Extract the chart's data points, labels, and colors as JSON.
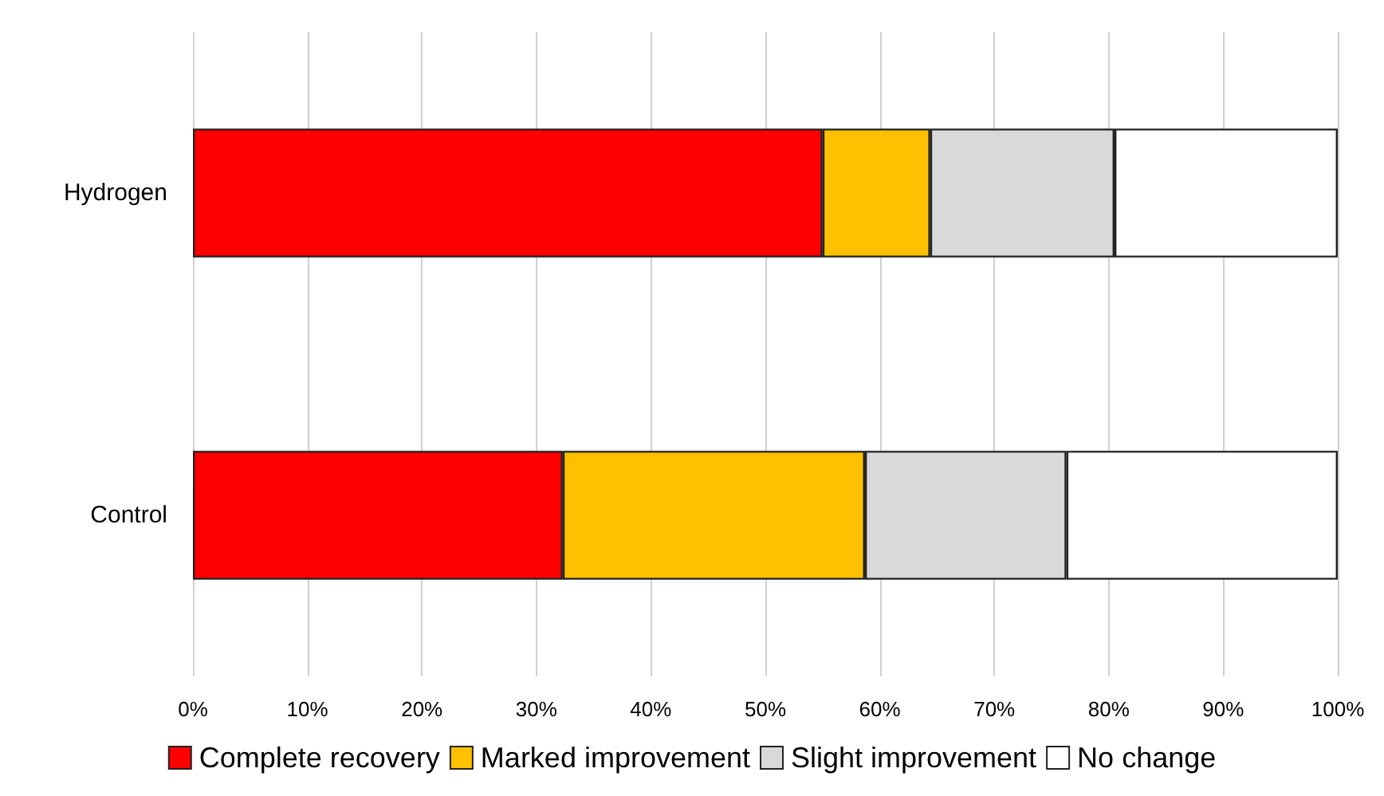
{
  "chart_data": {
    "type": "bar",
    "orientation": "horizontal",
    "stacked": true,
    "categories": [
      "Hydrogen",
      "Control"
    ],
    "series": [
      {
        "name": "Complete recovery",
        "color": "#ff0000",
        "values": [
          55,
          32.3
        ]
      },
      {
        "name": "Marked improvement",
        "color": "#ffc000",
        "values": [
          9.4,
          26.4
        ]
      },
      {
        "name": "Slight improvement",
        "color": "#d9d9d9",
        "values": [
          16.1,
          17.6
        ]
      },
      {
        "name": "No change",
        "color": "#ffffff",
        "values": [
          19.5,
          23.7
        ]
      }
    ],
    "xlim": [
      0,
      100
    ],
    "xticks": [
      {
        "value": 0,
        "label": "0%"
      },
      {
        "value": 10,
        "label": "10%"
      },
      {
        "value": 20,
        "label": "20%"
      },
      {
        "value": 30,
        "label": "30%"
      },
      {
        "value": 40,
        "label": "40%"
      },
      {
        "value": 50,
        "label": "50%"
      },
      {
        "value": 60,
        "label": "60%"
      },
      {
        "value": 70,
        "label": "70%"
      },
      {
        "value": 80,
        "label": "80%"
      },
      {
        "value": 90,
        "label": "90%"
      },
      {
        "value": 100,
        "label": "100%"
      }
    ],
    "grid": "x",
    "legend": "bottom"
  }
}
